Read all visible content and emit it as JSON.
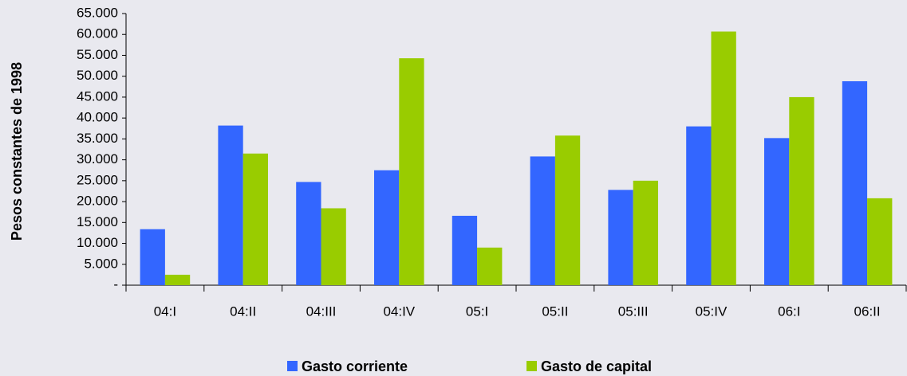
{
  "chart_data": {
    "type": "bar",
    "y_label": "Pesos constantes de 1998",
    "categories": [
      "04:I",
      "04:II",
      "04:III",
      "04:IV",
      "05:I",
      "05:II",
      "05:III",
      "05:IV",
      "06:I",
      "06:II"
    ],
    "series": [
      {
        "name": "Gasto corriente",
        "color": "#3366ff",
        "values": [
          13400,
          38200,
          24700,
          27500,
          16600,
          30800,
          22800,
          38000,
          35200,
          48800
        ]
      },
      {
        "name": "Gasto de capital",
        "color": "#99cc00",
        "values": [
          2500,
          31500,
          18400,
          54300,
          9000,
          35800,
          25000,
          60700,
          45000,
          20800
        ]
      }
    ],
    "ylim": [
      0,
      65000
    ],
    "yticks": [
      {
        "value": 0,
        "label": "-"
      },
      {
        "value": 5000,
        "label": "5.000"
      },
      {
        "value": 10000,
        "label": "10.000"
      },
      {
        "value": 15000,
        "label": "15.000"
      },
      {
        "value": 20000,
        "label": "20.000"
      },
      {
        "value": 25000,
        "label": "25.000"
      },
      {
        "value": 30000,
        "label": "30.000"
      },
      {
        "value": 35000,
        "label": "35.000"
      },
      {
        "value": 40000,
        "label": "40.000"
      },
      {
        "value": 45000,
        "label": "45.000"
      },
      {
        "value": 50000,
        "label": "50.000"
      },
      {
        "value": 55000,
        "label": "55.000"
      },
      {
        "value": 60000,
        "label": "60.000"
      },
      {
        "value": 65000,
        "label": "65.000"
      }
    ],
    "grid": false,
    "legend": "bottom"
  }
}
